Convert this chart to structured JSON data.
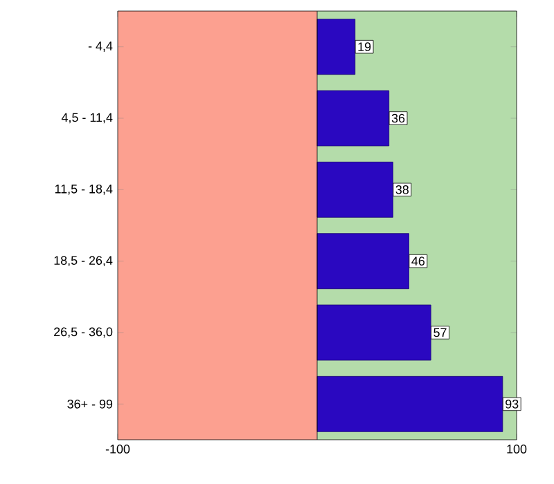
{
  "chart_data": {
    "type": "bar",
    "orientation": "horizontal",
    "categories": [
      "- 4,4",
      "4,5 - 11,4",
      "11,5 - 18,4",
      "18,5 - 26,4",
      "26,5 - 36,0",
      "36+ - 99"
    ],
    "values": [
      19,
      36,
      38,
      46,
      57,
      93
    ],
    "color": "#2a08c0",
    "xlim": [
      -100,
      100
    ],
    "xticks": [
      -100,
      100
    ],
    "data_labels": true,
    "bands": [
      {
        "axis": "x",
        "from": -100,
        "to": 0,
        "color": "#fca090"
      },
      {
        "axis": "x",
        "from": 0,
        "to": 100,
        "color": "#b4dcaa"
      }
    ]
  }
}
